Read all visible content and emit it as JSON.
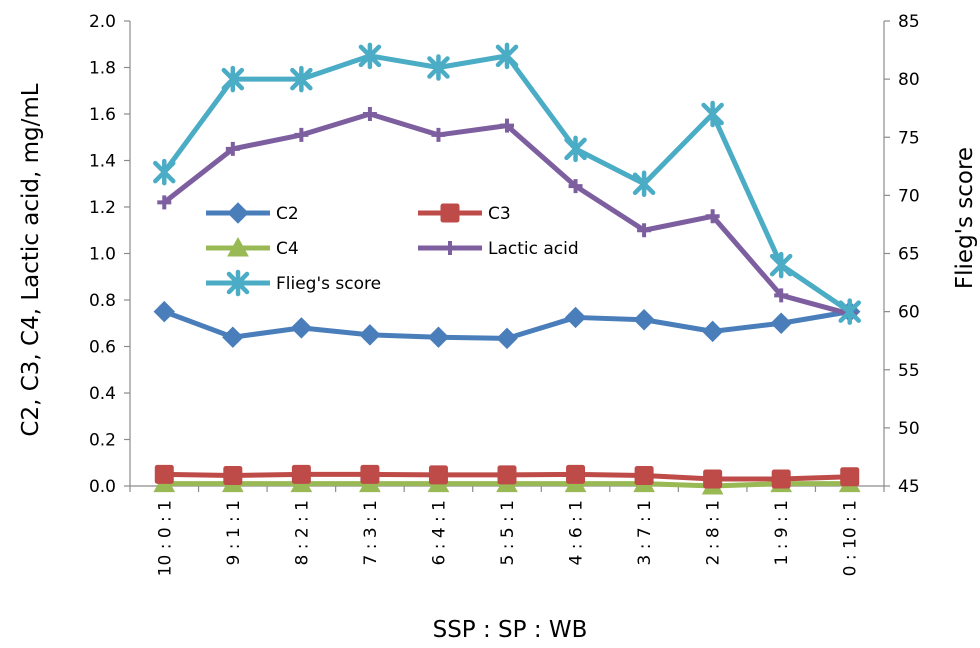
{
  "chart_data": {
    "type": "line",
    "categories": [
      "10 : 0 : 1",
      "9 : 1 : 1",
      "8 : 2 : 1",
      "7 : 3 : 1",
      "6 : 4 : 1",
      "5 : 5 : 1",
      "4 : 6 : 1",
      "3 : 7 : 1",
      "2 : 8 : 1",
      "1 : 9 : 1",
      "0 : 10 : 1"
    ],
    "xlabel": "SSP : SP : WB",
    "ylabel": "C2, C3, C4, Lactic acid, mg/mL",
    "y2label": "Flieg's score",
    "ylim": [
      0,
      2.0
    ],
    "y2lim": [
      45,
      85
    ],
    "yticks": [
      "0.0",
      "0.2",
      "0.4",
      "0.6",
      "0.8",
      "1.0",
      "1.2",
      "1.4",
      "1.6",
      "1.8",
      "2.0"
    ],
    "y2ticks": [
      "45",
      "50",
      "55",
      "60",
      "65",
      "70",
      "75",
      "80",
      "85"
    ],
    "grid": false,
    "legend": "inside-left",
    "series": [
      {
        "name": "C2",
        "axis": "left",
        "marker": "diamond",
        "color": "#4a7ebb",
        "values": [
          0.75,
          0.64,
          0.68,
          0.65,
          0.64,
          0.635,
          0.725,
          0.715,
          0.665,
          0.7,
          0.75
        ]
      },
      {
        "name": "C3",
        "axis": "left",
        "marker": "square",
        "color": "#be4b48",
        "values": [
          0.05,
          0.045,
          0.05,
          0.05,
          0.048,
          0.048,
          0.05,
          0.045,
          0.03,
          0.03,
          0.04
        ]
      },
      {
        "name": "C4",
        "axis": "left",
        "marker": "triangle",
        "color": "#98b954",
        "values": [
          0.01,
          0.01,
          0.01,
          0.01,
          0.01,
          0.01,
          0.01,
          0.01,
          0.0,
          0.01,
          0.01
        ]
      },
      {
        "name": "Lactic acid",
        "axis": "left",
        "marker": "plus",
        "color": "#7d5fa0",
        "values": [
          1.22,
          1.45,
          1.51,
          1.6,
          1.51,
          1.55,
          1.29,
          1.1,
          1.16,
          0.82,
          0.74
        ]
      },
      {
        "name": "Flieg's score",
        "axis": "right",
        "marker": "star",
        "color": "#4bacc6",
        "values": [
          72,
          80,
          80,
          82,
          81,
          82,
          74,
          71,
          77,
          64,
          60
        ]
      }
    ]
  }
}
